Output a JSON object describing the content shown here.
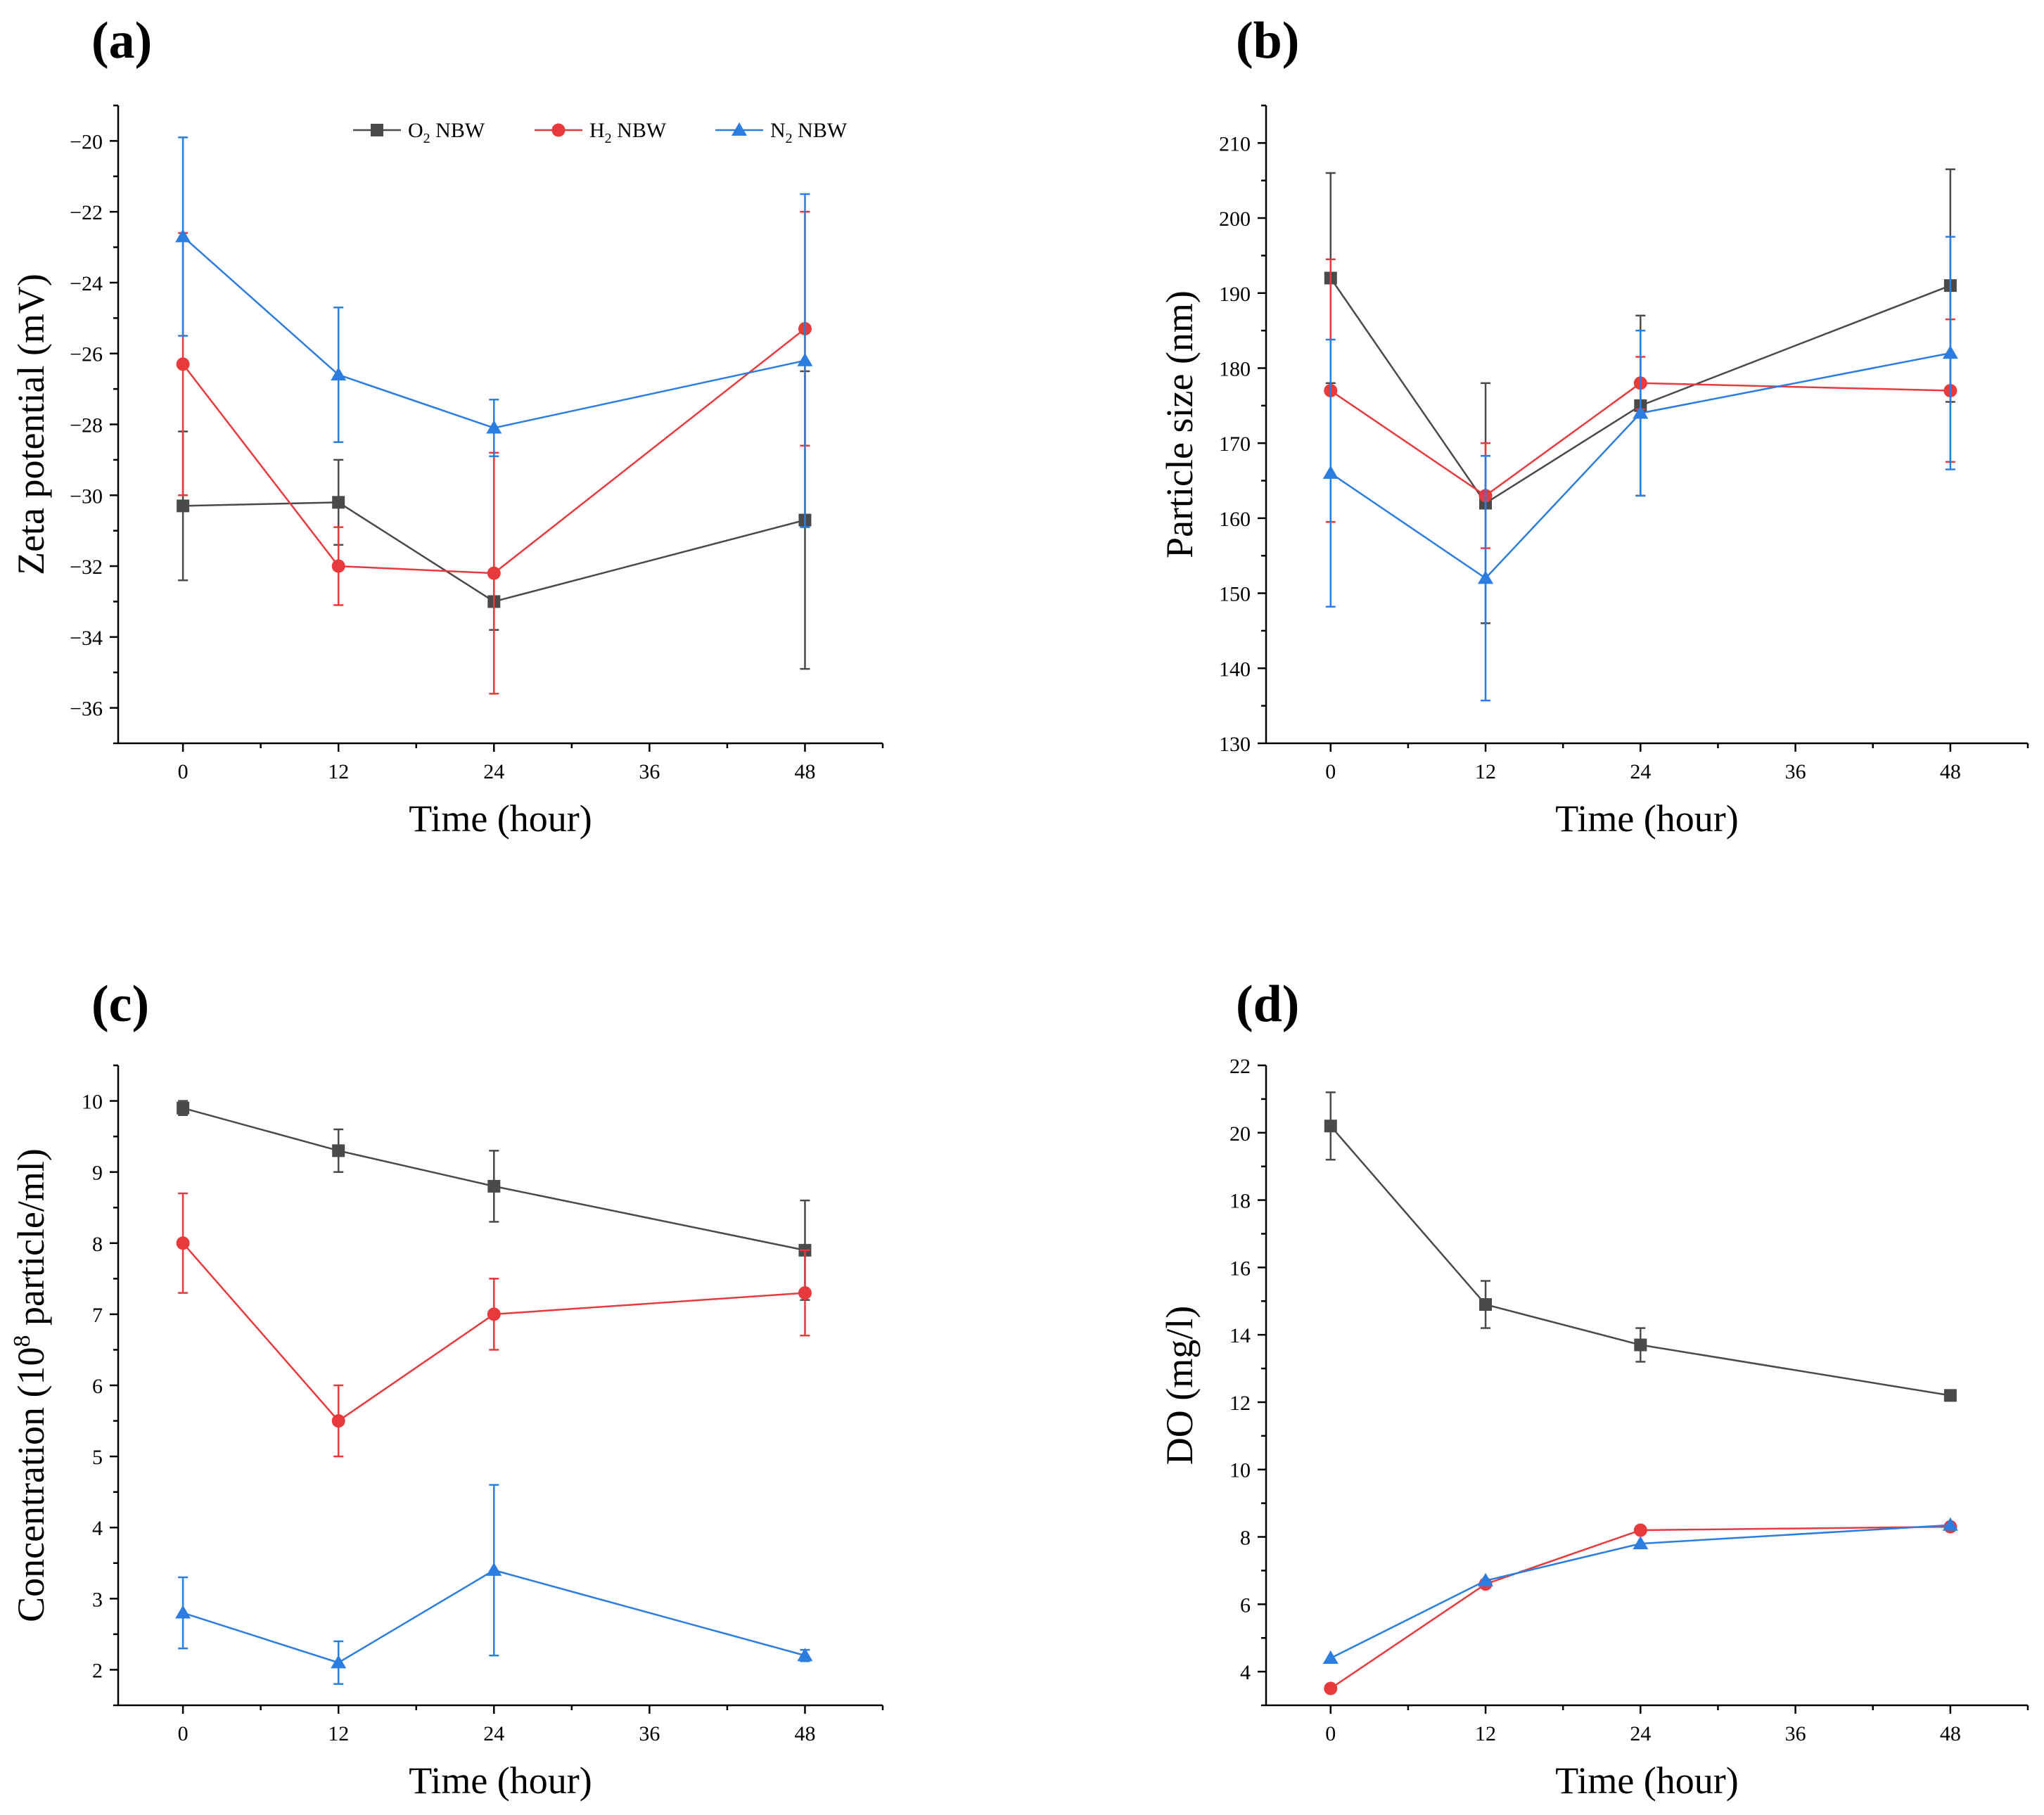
{
  "legend": {
    "entries": [
      {
        "label": "O",
        "sub": "2",
        "rest": " NBW"
      },
      {
        "label": "H",
        "sub": "2",
        "rest": " NBW"
      },
      {
        "label": "N",
        "sub": "2",
        "rest": " NBW"
      }
    ]
  },
  "chart_data": [
    {
      "type": "line",
      "panel_label": "(a)",
      "xlabel": "Time (hour)",
      "ylabel": "Zeta potential (mV)",
      "x": [
        0,
        12,
        24,
        48
      ],
      "xticks": [
        0,
        12,
        24,
        36,
        48
      ],
      "xlim": [
        -5,
        54
      ],
      "ylim": [
        -37,
        -19
      ],
      "yticks": [
        -36,
        -34,
        -32,
        -30,
        -28,
        -26,
        -24,
        -22,
        -20
      ],
      "legend": "top-right",
      "series": [
        {
          "name": "O2 NBW",
          "color": "#4a4a4a",
          "marker": "square",
          "values": [
            -30.3,
            -30.2,
            -33.0,
            -30.7
          ],
          "errors": [
            2.1,
            1.2,
            0.8,
            4.2
          ]
        },
        {
          "name": "H2 NBW",
          "color": "#e8393c",
          "marker": "circle",
          "values": [
            -26.3,
            -32.0,
            -32.2,
            -25.3
          ],
          "errors": [
            3.7,
            1.1,
            3.4,
            3.3
          ]
        },
        {
          "name": "N2 NBW",
          "color": "#2c7de0",
          "marker": "triangle",
          "values": [
            -22.7,
            -26.6,
            -28.1,
            -26.2
          ],
          "errors": [
            2.8,
            1.9,
            0.8,
            4.7
          ]
        }
      ]
    },
    {
      "type": "line",
      "panel_label": "(b)",
      "xlabel": "Time (hour)",
      "ylabel": "Particle size (nm)",
      "x": [
        0,
        12,
        24,
        48
      ],
      "xticks": [
        0,
        12,
        24,
        36,
        48
      ],
      "xlim": [
        -5,
        54
      ],
      "ylim": [
        130,
        215
      ],
      "yticks": [
        130,
        140,
        150,
        160,
        170,
        180,
        190,
        200,
        210
      ],
      "series": [
        {
          "name": "O2 NBW",
          "color": "#4a4a4a",
          "marker": "square",
          "values": [
            192,
            162,
            175,
            191
          ],
          "errors": [
            14,
            16,
            12,
            15.5
          ]
        },
        {
          "name": "H2 NBW",
          "color": "#e8393c",
          "marker": "circle",
          "values": [
            177,
            163,
            178,
            177
          ],
          "errors": [
            17.5,
            7,
            3.5,
            9.5
          ]
        },
        {
          "name": "N2 NBW",
          "color": "#2c7de0",
          "marker": "triangle",
          "values": [
            166,
            152,
            174,
            182
          ],
          "errors": [
            17.8,
            16.3,
            11,
            15.5
          ]
        }
      ]
    },
    {
      "type": "line",
      "panel_label": "(c)",
      "xlabel": "Time (hour)",
      "ylabel": "Concentration (10⁸ particle/ml)",
      "x": [
        0,
        12,
        24,
        48
      ],
      "xticks": [
        0,
        12,
        24,
        36,
        48
      ],
      "xlim": [
        -5,
        54
      ],
      "ylim": [
        1.5,
        10.5
      ],
      "yticks": [
        2,
        3,
        4,
        5,
        6,
        7,
        8,
        9,
        10
      ],
      "series": [
        {
          "name": "O2 NBW",
          "color": "#4a4a4a",
          "marker": "square",
          "values": [
            9.9,
            9.3,
            8.8,
            7.9
          ],
          "errors": [
            0.1,
            0.3,
            0.5,
            0.7
          ]
        },
        {
          "name": "H2 NBW",
          "color": "#e8393c",
          "marker": "circle",
          "values": [
            8.0,
            5.5,
            7.0,
            7.3
          ],
          "errors": [
            0.7,
            0.5,
            0.5,
            0.6
          ]
        },
        {
          "name": "N2 NBW",
          "color": "#2c7de0",
          "marker": "triangle",
          "values": [
            2.8,
            2.1,
            3.4,
            2.2
          ],
          "errors": [
            0.5,
            0.3,
            1.2,
            0.08
          ]
        }
      ]
    },
    {
      "type": "line",
      "panel_label": "(d)",
      "xlabel": "Time (hour)",
      "ylabel": "DO (mg/l)",
      "x": [
        0,
        12,
        24,
        48
      ],
      "xticks": [
        0,
        12,
        24,
        36,
        48
      ],
      "xlim": [
        -5,
        54
      ],
      "ylim": [
        3,
        22
      ],
      "yticks": [
        4,
        6,
        8,
        10,
        12,
        14,
        16,
        18,
        20,
        22
      ],
      "series": [
        {
          "name": "O2 NBW",
          "color": "#4a4a4a",
          "marker": "square",
          "values": [
            20.2,
            14.9,
            13.7,
            12.2
          ],
          "errors": [
            1.0,
            0.7,
            0.5,
            0.1
          ]
        },
        {
          "name": "H2 NBW",
          "color": "#e8393c",
          "marker": "circle",
          "values": [
            3.5,
            6.6,
            8.2,
            8.3
          ],
          "errors": [
            0,
            0,
            0,
            0
          ]
        },
        {
          "name": "N2 NBW",
          "color": "#2c7de0",
          "marker": "triangle",
          "values": [
            4.4,
            6.7,
            7.8,
            8.35
          ],
          "errors": [
            0,
            0,
            0,
            0
          ]
        }
      ]
    }
  ]
}
